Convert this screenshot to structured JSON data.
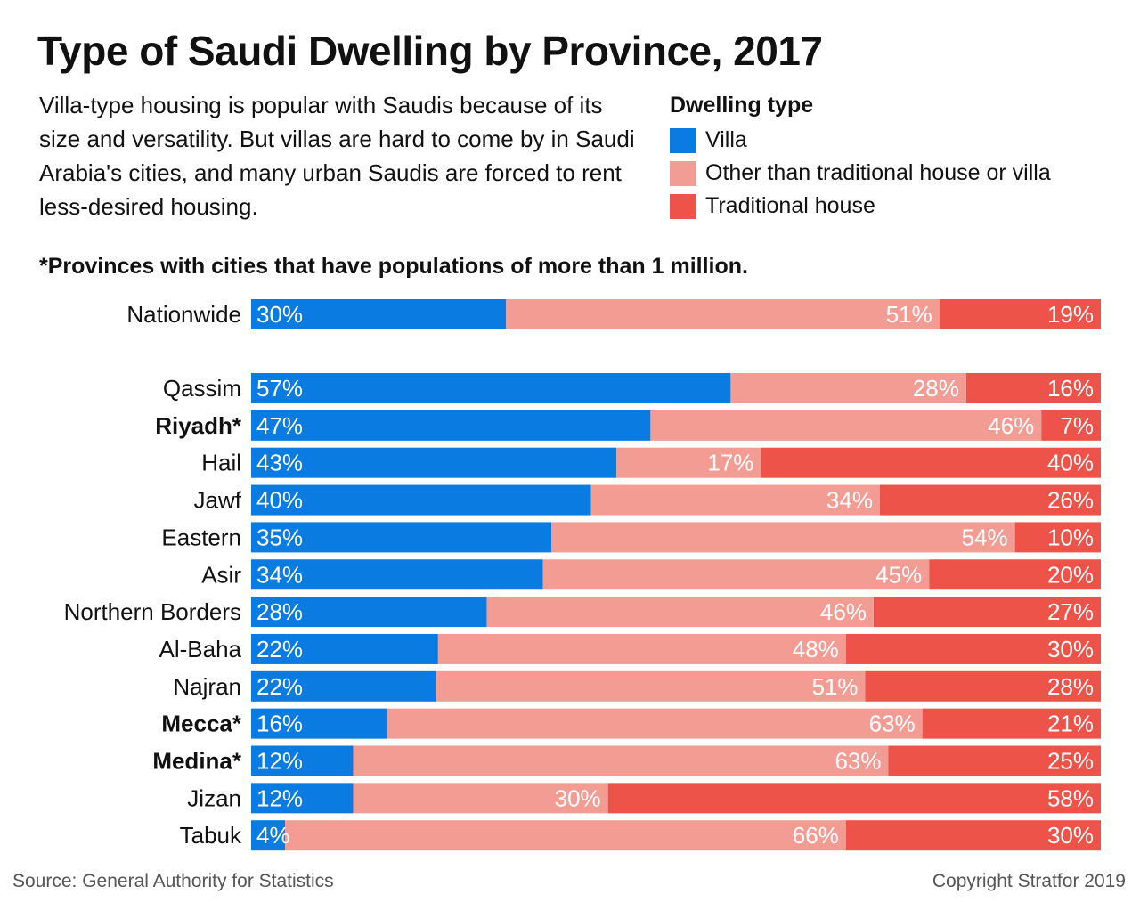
{
  "title": "Type of Saudi Dwelling by Province, 2017",
  "subtitle": "Villa-type housing is popular with Saudis because of its size and versatility. But villas are hard to come by in Saudi Arabia's cities, and many urban Saudis are forced to rent less-desired housing.",
  "legend": {
    "title": "Dwelling type",
    "items": [
      {
        "label": "Villa",
        "color": "#0a7be0"
      },
      {
        "label": "Other than traditional house or villa",
        "color": "#f39c94"
      },
      {
        "label": "Traditional house",
        "color": "#ee5349"
      }
    ]
  },
  "note": "*Provinces with cities that have populations of more than 1 million.",
  "source": "Source: General Authority for Statistics",
  "copyright": "Copyright Stratfor 2019",
  "chart_data": {
    "type": "bar",
    "orientation": "horizontal",
    "stacked": true,
    "percent_scale": true,
    "categories": [
      "Nationwide",
      "Qassim",
      "Riyadh*",
      "Hail",
      "Jawf",
      "Eastern",
      "Asir",
      "Northern Borders",
      "Al-Baha",
      "Najran",
      "Mecca*",
      "Medina*",
      "Jizan",
      "Tabuk"
    ],
    "bold_categories": [
      "Riyadh*",
      "Mecca*",
      "Medina*"
    ],
    "series": [
      {
        "name": "Villa",
        "color": "#0a7be0",
        "values": [
          30,
          57,
          47,
          43,
          40,
          35,
          34,
          28,
          22,
          22,
          16,
          12,
          12,
          4
        ]
      },
      {
        "name": "Other than traditional house or villa",
        "color": "#f39c94",
        "values": [
          51,
          28,
          46,
          17,
          34,
          54,
          45,
          46,
          48,
          51,
          63,
          63,
          30,
          66
        ]
      },
      {
        "name": "Traditional house",
        "color": "#ee5349",
        "values": [
          19,
          16,
          7,
          40,
          26,
          10,
          20,
          27,
          30,
          28,
          21,
          25,
          58,
          30
        ]
      }
    ],
    "value_suffix": "%"
  }
}
